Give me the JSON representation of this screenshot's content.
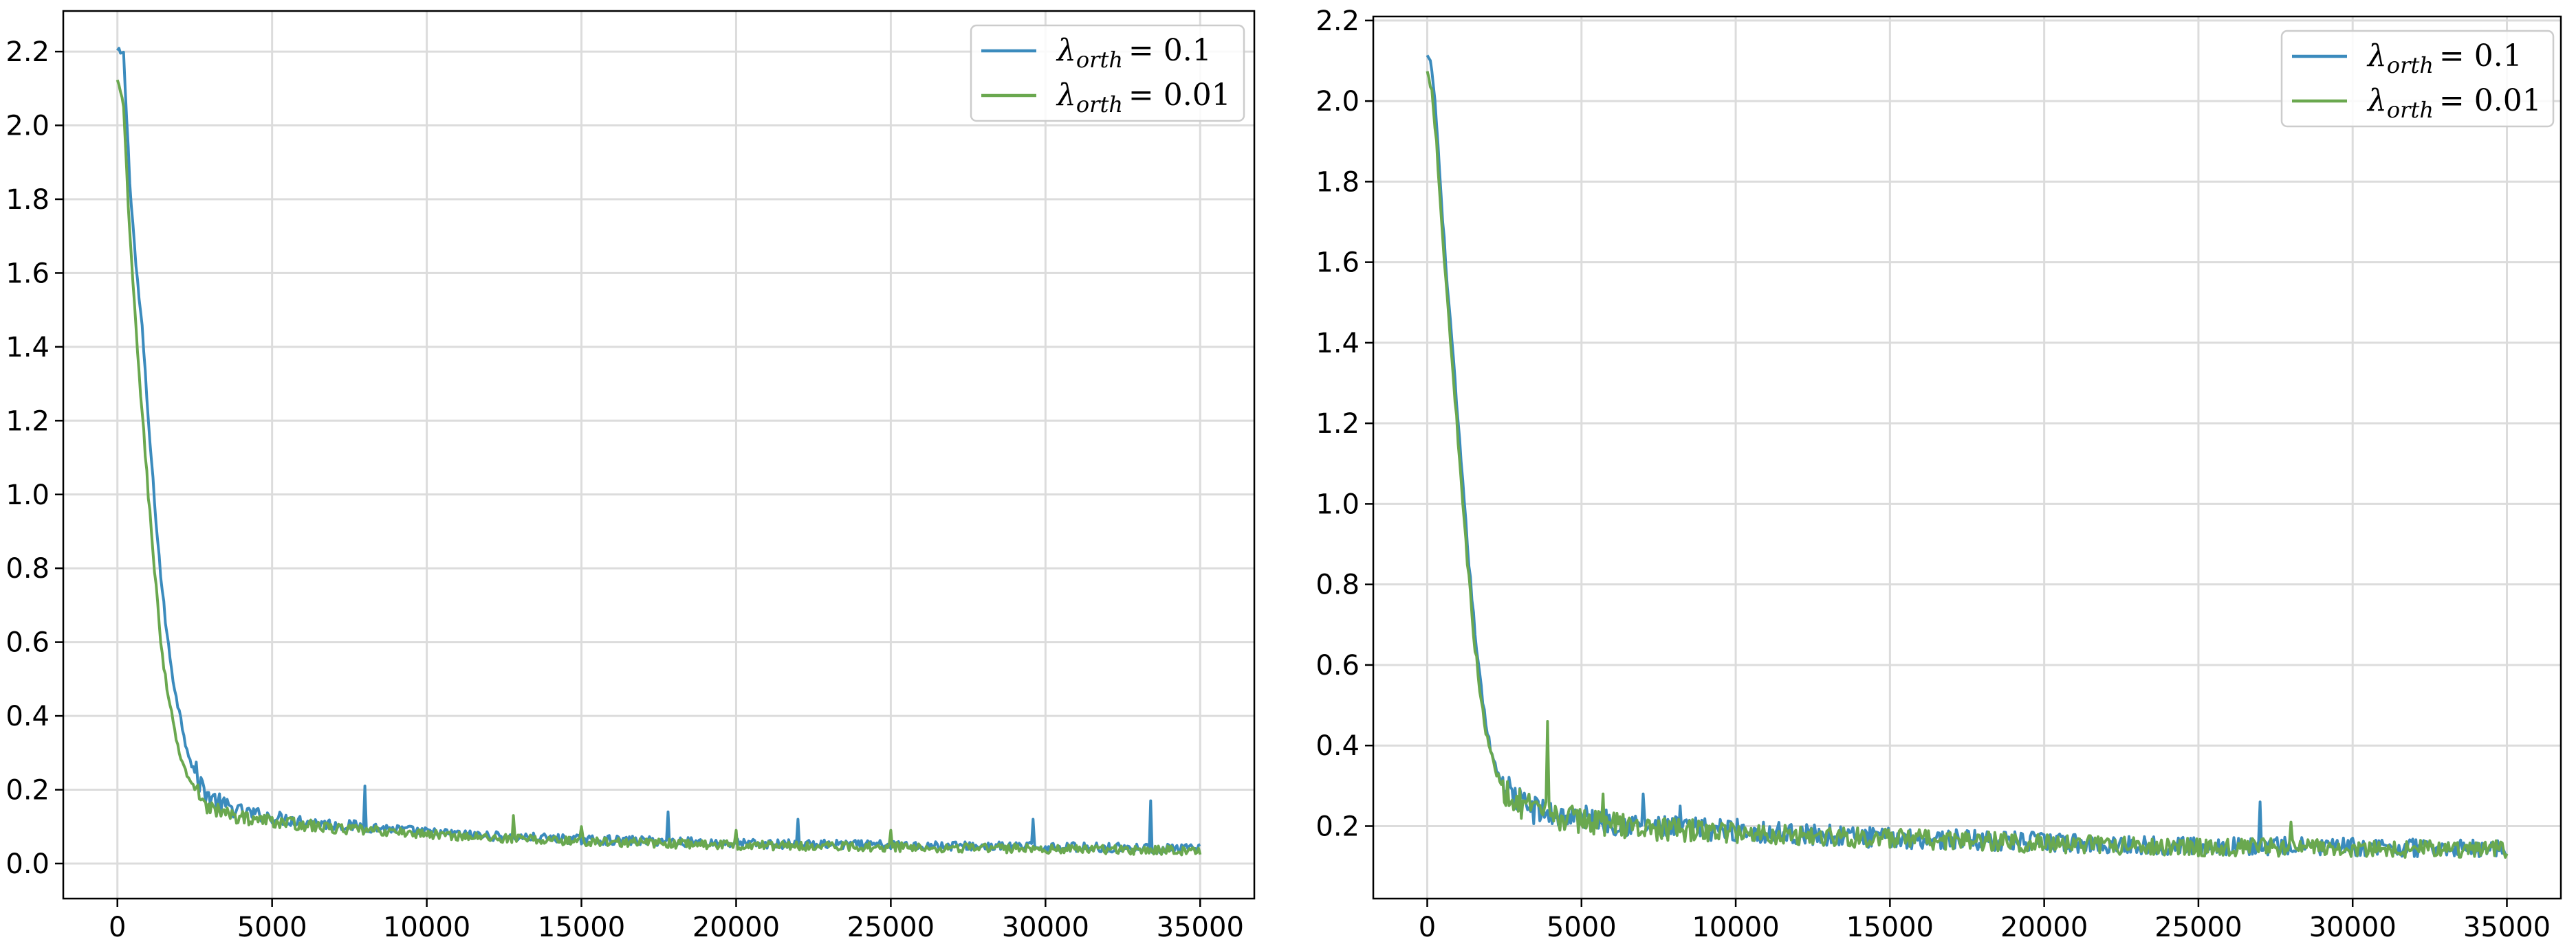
{
  "chart_data": [
    {
      "type": "line",
      "xlim": [
        -1750,
        36750
      ],
      "ylim": [
        -0.095,
        2.31
      ],
      "xticks": [
        0,
        5000,
        10000,
        15000,
        20000,
        25000,
        30000,
        35000
      ],
      "xtick_labels": [
        "0",
        "5000",
        "10000",
        "15000",
        "20000",
        "25000",
        "30000",
        "35000"
      ],
      "yticks": [
        0.0,
        0.2,
        0.4,
        0.6,
        0.8,
        1.0,
        1.2,
        1.4,
        1.6,
        1.8,
        2.0,
        2.2
      ],
      "ytick_labels": [
        "0.0",
        "0.2",
        "0.4",
        "0.6",
        "0.8",
        "1.0",
        "1.2",
        "1.4",
        "1.6",
        "1.8",
        "2.0",
        "2.2"
      ],
      "grid": true,
      "legend_position": "top-right",
      "x_range": [
        0,
        35000
      ],
      "series": [
        {
          "name": "λ_orth = 0.1",
          "legend_symbol": "λ",
          "legend_sub": "orth",
          "legend_eq": "= 0.1",
          "color": "#3b8bbd",
          "x": [
            0,
            200,
            400,
            600,
            800,
            1000,
            1200,
            1400,
            1600,
            1800,
            2000,
            2200,
            2400,
            2600,
            2800,
            3000,
            3500,
            4000,
            5000,
            6000,
            7000,
            8000,
            10000,
            12000,
            15000,
            17800,
            20000,
            22000,
            25000,
            27000,
            29600,
            30000,
            33000,
            33400,
            35000
          ],
          "y": [
            2.2,
            2.19,
            1.85,
            1.62,
            1.45,
            1.2,
            0.98,
            0.78,
            0.62,
            0.5,
            0.41,
            0.33,
            0.27,
            0.23,
            0.2,
            0.18,
            0.155,
            0.14,
            0.125,
            0.115,
            0.105,
            0.1,
            0.085,
            0.075,
            0.065,
            0.06,
            0.055,
            0.052,
            0.05,
            0.048,
            0.045,
            0.045,
            0.043,
            0.04,
            0.04
          ],
          "spikes": [
            [
              8000,
              0.21
            ],
            [
              17800,
              0.14
            ],
            [
              22000,
              0.12
            ],
            [
              29600,
              0.12
            ],
            [
              33400,
              0.17
            ]
          ]
        },
        {
          "name": "λ_orth = 0.01",
          "legend_symbol": "λ",
          "legend_sub": "orth",
          "legend_eq": "= 0.01",
          "color": "#6aa84f",
          "x": [
            0,
            200,
            400,
            600,
            800,
            1000,
            1200,
            1400,
            1600,
            1800,
            2000,
            2200,
            2400,
            2600,
            2800,
            3000,
            3500,
            4000,
            5000,
            6000,
            7000,
            8000,
            10000,
            12000,
            15000,
            20000,
            25000,
            30000,
            35000
          ],
          "y": [
            2.12,
            2.05,
            1.7,
            1.45,
            1.22,
            1.0,
            0.8,
            0.6,
            0.47,
            0.38,
            0.3,
            0.25,
            0.22,
            0.19,
            0.17,
            0.15,
            0.135,
            0.125,
            0.115,
            0.105,
            0.095,
            0.09,
            0.08,
            0.07,
            0.06,
            0.05,
            0.045,
            0.04,
            0.035
          ],
          "spikes": [
            [
              12800,
              0.13
            ],
            [
              15000,
              0.1
            ],
            [
              20000,
              0.09
            ],
            [
              25000,
              0.09
            ]
          ]
        }
      ]
    },
    {
      "type": "line",
      "xlim": [
        -1750,
        36750
      ],
      "ylim": [
        0.02,
        2.21
      ],
      "xticks": [
        0,
        5000,
        10000,
        15000,
        20000,
        25000,
        30000,
        35000
      ],
      "xtick_labels": [
        "0",
        "5000",
        "10000",
        "15000",
        "20000",
        "25000",
        "30000",
        "35000"
      ],
      "yticks": [
        0.2,
        0.4,
        0.6,
        0.8,
        1.0,
        1.2,
        1.4,
        1.6,
        1.8,
        2.0,
        2.2
      ],
      "ytick_labels": [
        "0.2",
        "0.4",
        "0.6",
        "0.8",
        "1.0",
        "1.2",
        "1.4",
        "1.6",
        "1.8",
        "2.0",
        "2.2"
      ],
      "grid": true,
      "legend_position": "top-right",
      "x_range": [
        0,
        35000
      ],
      "series": [
        {
          "name": "λ_orth = 0.1",
          "legend_symbol": "λ",
          "legend_sub": "orth",
          "legend_eq": "= 0.1",
          "color": "#3b8bbd",
          "x": [
            0,
            150,
            300,
            500,
            700,
            900,
            1100,
            1300,
            1500,
            1700,
            1900,
            2100,
            2300,
            2600,
            3000,
            3500,
            4000,
            5000,
            6000,
            7000,
            8000,
            10000,
            12000,
            15000,
            18000,
            20000,
            22000,
            25000,
            28000,
            30000,
            33000,
            35000
          ],
          "y": [
            2.11,
            2.08,
            1.95,
            1.7,
            1.5,
            1.3,
            1.1,
            0.9,
            0.72,
            0.57,
            0.45,
            0.38,
            0.33,
            0.29,
            0.26,
            0.24,
            0.23,
            0.22,
            0.21,
            0.2,
            0.195,
            0.19,
            0.18,
            0.17,
            0.165,
            0.16,
            0.155,
            0.15,
            0.15,
            0.148,
            0.145,
            0.145
          ],
          "spikes": [
            [
              7000,
              0.28
            ],
            [
              8200,
              0.25
            ],
            [
              27000,
              0.26
            ]
          ]
        },
        {
          "name": "λ_orth = 0.01",
          "legend_symbol": "λ",
          "legend_sub": "orth",
          "legend_eq": "= 0.01",
          "color": "#6aa84f",
          "x": [
            0,
            150,
            300,
            500,
            700,
            900,
            1100,
            1300,
            1500,
            1700,
            1900,
            2100,
            2300,
            2600,
            3000,
            3500,
            4000,
            5000,
            6000,
            7000,
            8000,
            10000,
            12000,
            15000,
            18000,
            20000,
            22000,
            25000,
            28000,
            30000,
            33000,
            35000
          ],
          "y": [
            2.07,
            2.03,
            1.9,
            1.66,
            1.46,
            1.26,
            1.06,
            0.86,
            0.68,
            0.54,
            0.43,
            0.37,
            0.32,
            0.285,
            0.255,
            0.235,
            0.225,
            0.215,
            0.205,
            0.195,
            0.19,
            0.185,
            0.178,
            0.168,
            0.162,
            0.157,
            0.152,
            0.148,
            0.147,
            0.145,
            0.143,
            0.143
          ],
          "spikes": [
            [
              3900,
              0.46
            ],
            [
              5700,
              0.28
            ],
            [
              28000,
              0.21
            ]
          ]
        }
      ]
    }
  ]
}
